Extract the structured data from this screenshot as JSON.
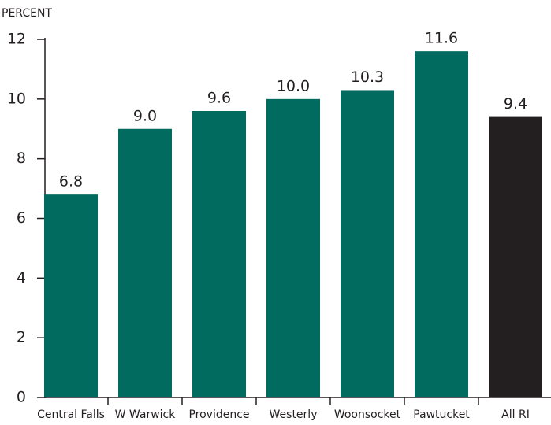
{
  "chart_data": {
    "type": "bar",
    "y_label": "PERCENT",
    "categories": [
      "Central Falls",
      "W Warwick",
      "Providence",
      "Westerly",
      "Woonsocket",
      "Pawtucket",
      "All RI"
    ],
    "values": [
      6.8,
      9.0,
      9.6,
      10.0,
      10.3,
      11.6,
      9.4
    ],
    "value_labels": [
      "6.8",
      "9.0",
      "9.6",
      "10.0",
      "10.3",
      "11.6",
      "9.4"
    ],
    "colors": [
      "#006b5e",
      "#006b5e",
      "#006b5e",
      "#006b5e",
      "#006b5e",
      "#006b5e",
      "#231f20"
    ],
    "ylim": [
      0,
      12
    ],
    "yticks": [
      0,
      2,
      4,
      6,
      8,
      10,
      12
    ],
    "grid": false
  }
}
